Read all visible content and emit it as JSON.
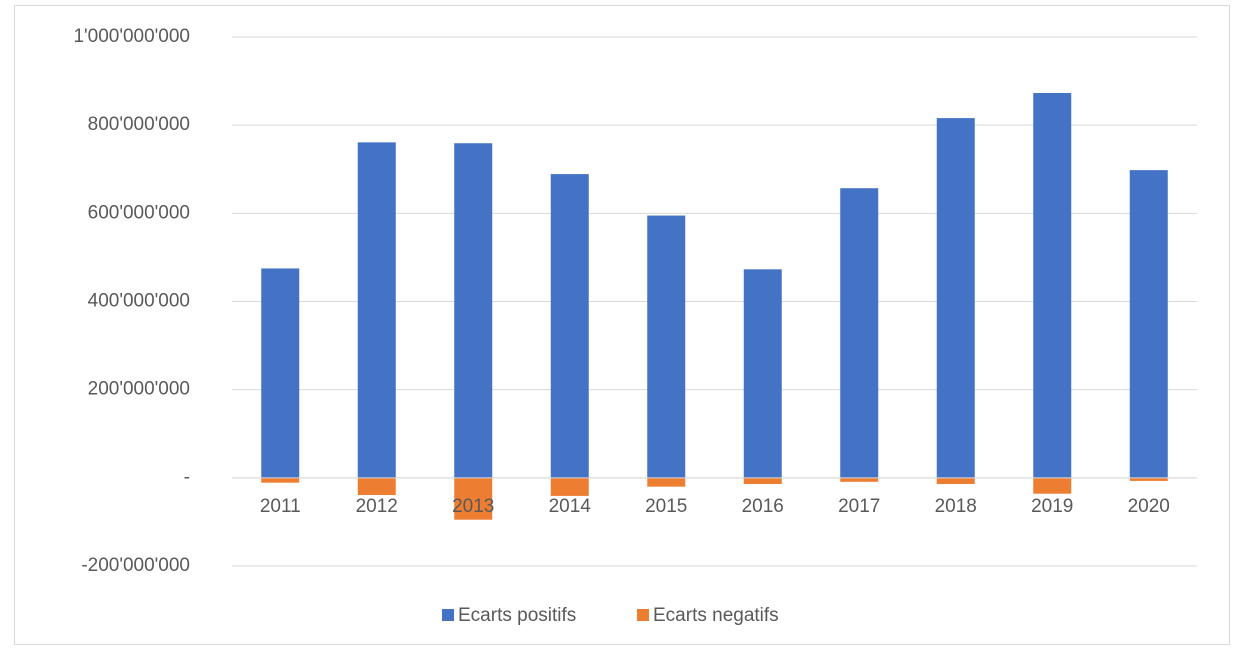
{
  "chart_data": {
    "type": "stacked_bar",
    "categories": [
      "2011",
      "2012",
      "2013",
      "2014",
      "2015",
      "2016",
      "2017",
      "2018",
      "2019",
      "2020"
    ],
    "series": [
      {
        "name": "Ecarts positifs",
        "color": "#4472c4",
        "values": [
          475000000,
          761000000,
          759000000,
          689000000,
          595000000,
          473000000,
          657000000,
          816000000,
          873000000,
          698000000
        ]
      },
      {
        "name": "Ecarts negatifs",
        "color": "#ed7d31",
        "values": [
          -11000000,
          -39000000,
          -95000000,
          -41000000,
          -20000000,
          -14000000,
          -9000000,
          -14000000,
          -36000000,
          -7000000
        ]
      }
    ],
    "ylim": [
      -200000000,
      1000000000
    ],
    "yticks": [
      {
        "value": -200000000,
        "label": "-200'000'000"
      },
      {
        "value": 0,
        "label": "-"
      },
      {
        "value": 200000000,
        "label": "200'000'000"
      },
      {
        "value": 400000000,
        "label": "400'000'000"
      },
      {
        "value": 600000000,
        "label": "600'000'000"
      },
      {
        "value": 800000000,
        "label": "800'000'000"
      },
      {
        "value": 1000000000,
        "label": "1'000'000'000"
      }
    ],
    "grid": true,
    "legend": "bottom"
  }
}
